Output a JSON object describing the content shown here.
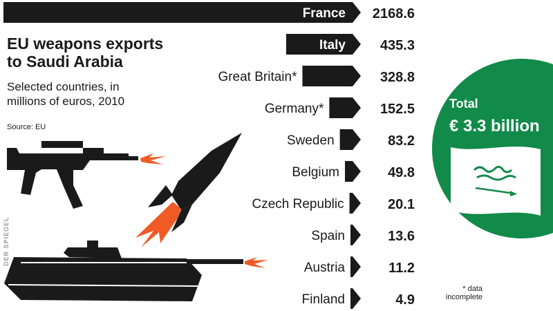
{
  "title_line1": "EU weapons exports",
  "title_line2": "to Saudi Arabia",
  "subtitle_line1": "Selected countries, in",
  "subtitle_line2": "millions of euros, 2010",
  "source": "Source: EU",
  "credit": "DER SPIEGEL",
  "total_label": "Total",
  "total_value": "€ 3.3 billion",
  "footnote_line1": "* data",
  "footnote_line2": "incomplete",
  "colors": {
    "bar": "#1a1a1a",
    "circle": "#118a4a",
    "flash": "#f05a24",
    "text": "#1a1a1a"
  },
  "icons": [
    "assault-rifle-icon",
    "missile-icon",
    "tank-icon",
    "saudi-flag-icon"
  ],
  "chart_data": {
    "type": "bar",
    "orientation": "horizontal",
    "unit": "millions of euros",
    "categories": [
      "France",
      "Italy",
      "Great Britain*",
      "Germany*",
      "Sweden",
      "Belgium",
      "Czech Republic",
      "Spain",
      "Austria",
      "Finland"
    ],
    "values": [
      2168.6,
      435.3,
      328.8,
      152.5,
      83.2,
      49.8,
      20.1,
      13.6,
      11.2,
      4.9
    ],
    "value_labels": [
      "2168.6",
      "435.3",
      "328.8",
      "152.5",
      "83.2",
      "49.8",
      "20.1",
      "13.6",
      "11.2",
      "4.9"
    ]
  }
}
